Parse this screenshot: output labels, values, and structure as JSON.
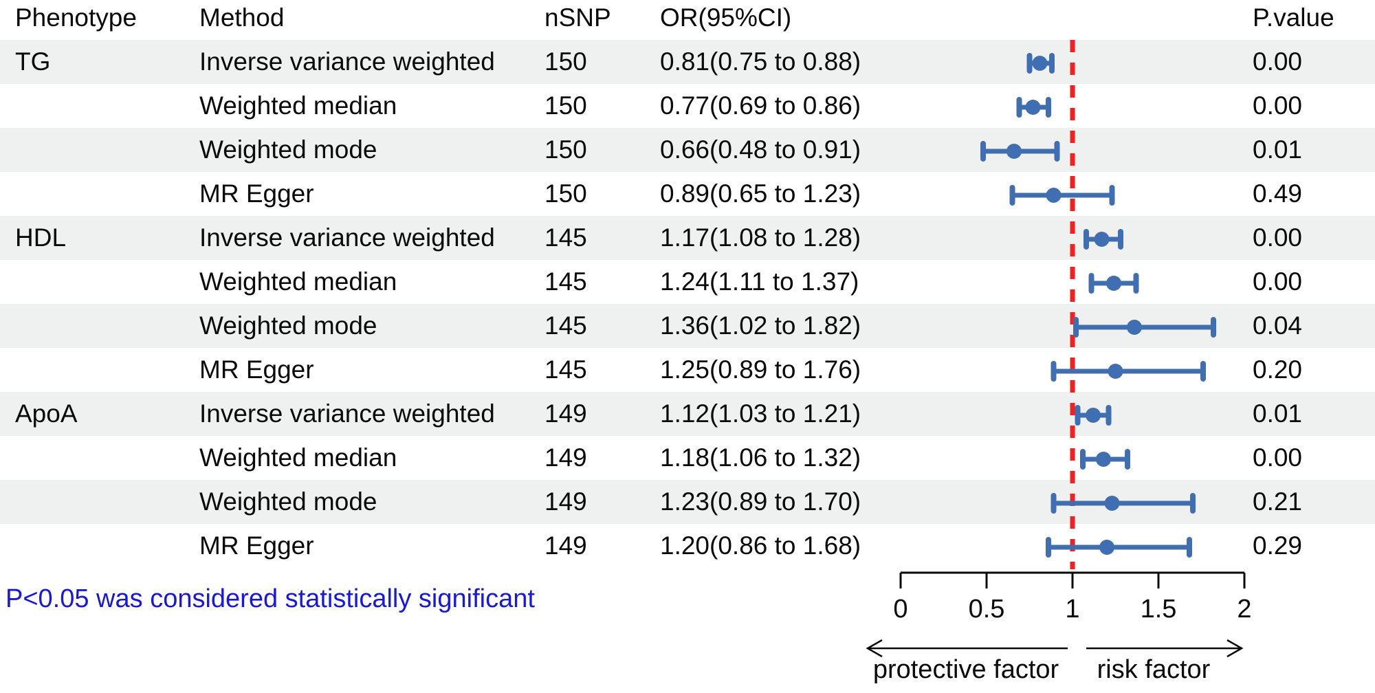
{
  "table": {
    "headers": {
      "phenotype": "Phenotype",
      "method": "Method",
      "nsnp": "nSNP",
      "or_ci": "OR(95%CI)",
      "p_value": "P.value"
    }
  },
  "chart_data": {
    "type": "forest",
    "x_axis": {
      "min": 0,
      "max": 2,
      "tick_values": [
        0,
        0.5,
        1,
        1.5,
        2
      ],
      "tick_labels": [
        "0",
        "0.5",
        "1",
        "1.5",
        "2"
      ],
      "reference_line": 1
    },
    "direction_labels": {
      "left": "protective factor",
      "right": "risk factor"
    },
    "rows": [
      {
        "phenotype": "TG",
        "method": "Inverse variance weighted",
        "nsnp": "150",
        "or": 0.81,
        "ci_low": 0.75,
        "ci_high": 0.88,
        "or_ci": "0.81(0.75 to 0.88)",
        "p_value": "0.00"
      },
      {
        "phenotype": "",
        "method": "Weighted median",
        "nsnp": "150",
        "or": 0.77,
        "ci_low": 0.69,
        "ci_high": 0.86,
        "or_ci": "0.77(0.69 to 0.86)",
        "p_value": "0.00"
      },
      {
        "phenotype": "",
        "method": "Weighted mode",
        "nsnp": "150",
        "or": 0.66,
        "ci_low": 0.48,
        "ci_high": 0.91,
        "or_ci": "0.66(0.48 to 0.91)",
        "p_value": "0.01"
      },
      {
        "phenotype": "",
        "method": "MR Egger",
        "nsnp": "150",
        "or": 0.89,
        "ci_low": 0.65,
        "ci_high": 1.23,
        "or_ci": "0.89(0.65 to 1.23)",
        "p_value": "0.49"
      },
      {
        "phenotype": "HDL",
        "method": "Inverse variance weighted",
        "nsnp": "145",
        "or": 1.17,
        "ci_low": 1.08,
        "ci_high": 1.28,
        "or_ci": "1.17(1.08 to 1.28)",
        "p_value": "0.00"
      },
      {
        "phenotype": "",
        "method": "Weighted median",
        "nsnp": "145",
        "or": 1.24,
        "ci_low": 1.11,
        "ci_high": 1.37,
        "or_ci": "1.24(1.11 to 1.37)",
        "p_value": "0.00"
      },
      {
        "phenotype": "",
        "method": "Weighted mode",
        "nsnp": "145",
        "or": 1.36,
        "ci_low": 1.02,
        "ci_high": 1.82,
        "or_ci": "1.36(1.02 to 1.82)",
        "p_value": "0.04"
      },
      {
        "phenotype": "",
        "method": "MR Egger",
        "nsnp": "145",
        "or": 1.25,
        "ci_low": 0.89,
        "ci_high": 1.76,
        "or_ci": "1.25(0.89 to 1.76)",
        "p_value": "0.20"
      },
      {
        "phenotype": "ApoA",
        "method": "Inverse variance weighted",
        "nsnp": "149",
        "or": 1.12,
        "ci_low": 1.03,
        "ci_high": 1.21,
        "or_ci": "1.12(1.03 to 1.21)",
        "p_value": "0.01"
      },
      {
        "phenotype": "",
        "method": "Weighted median",
        "nsnp": "149",
        "or": 1.18,
        "ci_low": 1.06,
        "ci_high": 1.32,
        "or_ci": "1.18(1.06 to 1.32)",
        "p_value": "0.00"
      },
      {
        "phenotype": "",
        "method": "Weighted mode",
        "nsnp": "149",
        "or": 1.23,
        "ci_low": 0.89,
        "ci_high": 1.7,
        "or_ci": "1.23(0.89 to 1.70)",
        "p_value": "0.21"
      },
      {
        "phenotype": "",
        "method": "MR Egger",
        "nsnp": "149",
        "or": 1.2,
        "ci_low": 0.86,
        "ci_high": 1.68,
        "or_ci": "1.20(0.86 to 1.68)",
        "p_value": "0.29"
      }
    ]
  },
  "note": {
    "text": "P<0.05 was considered statistically significant"
  },
  "colors": {
    "marker_blue": "#3f6fb2",
    "reference_red": "#f22020",
    "note_blue": "#1717dd",
    "band_gray": "#eef1f0",
    "axis_black": "#0a0a0a"
  }
}
